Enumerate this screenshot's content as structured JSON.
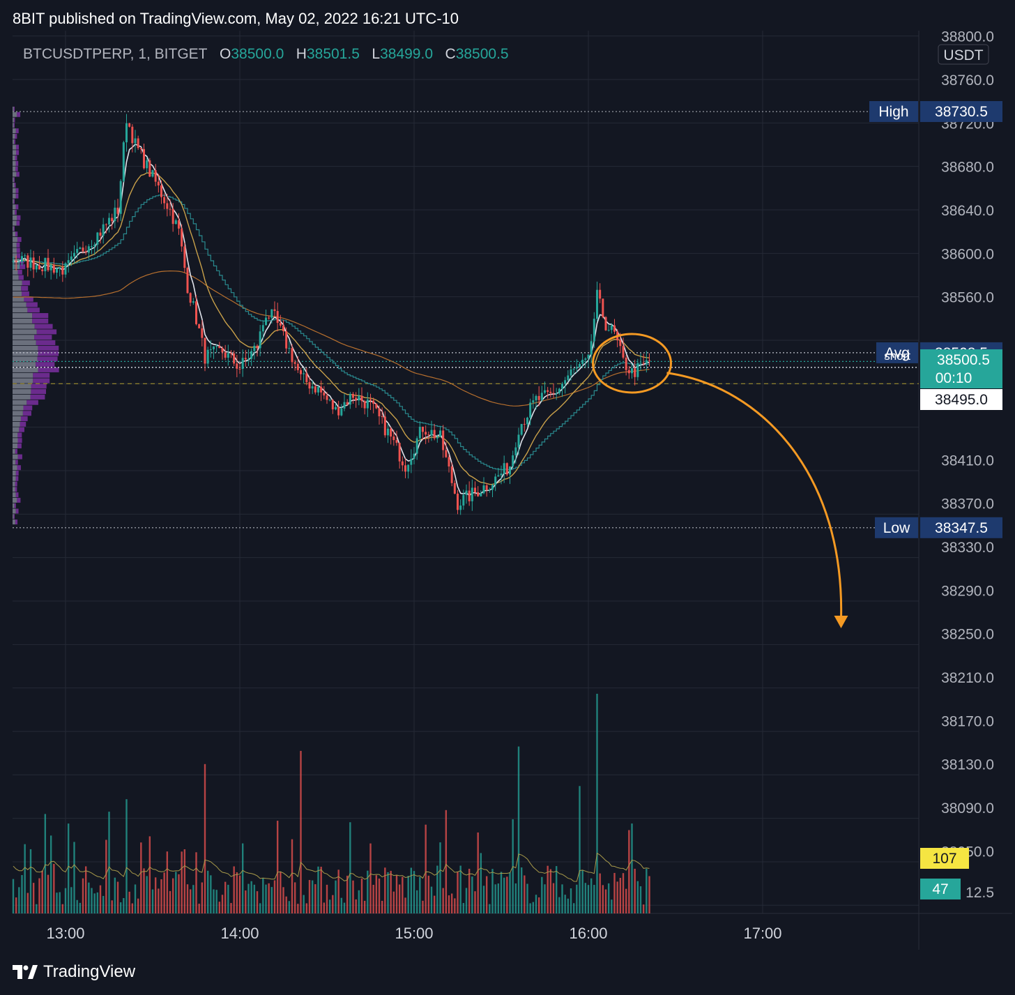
{
  "header": {
    "publisher": "8BIT published on TradingView.com, May 02, 2022 16:21 UTC-10",
    "symbol": "BTCUSDTPERP, 1, BITGET",
    "ohlc": [
      {
        "key": "O",
        "value": "38500.0"
      },
      {
        "key": "H",
        "value": "38501.5"
      },
      {
        "key": "L",
        "value": "38499.0"
      },
      {
        "key": "C",
        "value": "38500.5"
      }
    ]
  },
  "brand": {
    "name": "TradingView",
    "icon": "tradingview-logo-icon"
  },
  "colors": {
    "background": "#131722",
    "grid": "#252a36",
    "up": "#26a69a",
    "down": "#ef5350",
    "ema_fast": "#e0e3eb",
    "ema_mid": "#c9a14a",
    "vwap": "#2a8a8f",
    "ma_long": "#b8702e",
    "annotation": "#f59a23",
    "label_navy": "#1e3a6e",
    "profile_purple": "#7b2fa0",
    "profile_gray": "#8a8f9c"
  },
  "chart_data": {
    "type": "candlestick",
    "currency": "USDT",
    "y_ticks": [
      "38800.0",
      "38760.0",
      "38720.0",
      "38680.0",
      "38640.0",
      "38600.0",
      "38560.0",
      "38410.0",
      "38370.0",
      "38330.0",
      "38290.0",
      "38250.0",
      "38210.0",
      "38170.0",
      "38130.0",
      "38090.0",
      "38050.0",
      "12.5"
    ],
    "x_ticks": [
      "13:00",
      "14:00",
      "15:00",
      "16:00",
      "17:00"
    ],
    "price_labels": {
      "high": {
        "name": "High",
        "value": "38730.5"
      },
      "avg": {
        "name": "Avg",
        "value": "38508.5"
      },
      "last": {
        "value": "38500.5",
        "countdown": "00:10",
        "note": "short"
      },
      "crosshair": {
        "value": "38495.0"
      },
      "low": {
        "name": "Low",
        "value": "38347.5"
      }
    },
    "volume_labels": {
      "volume_ma": "107",
      "volume": "47"
    },
    "price_path": [
      [
        12.7,
        38595
      ],
      [
        12.85,
        38590
      ],
      [
        13.0,
        38585
      ],
      [
        13.1,
        38605
      ],
      [
        13.2,
        38620
      ],
      [
        13.3,
        38640
      ],
      [
        13.35,
        38725
      ],
      [
        13.4,
        38700
      ],
      [
        13.5,
        38670
      ],
      [
        13.6,
        38640
      ],
      [
        13.65,
        38620
      ],
      [
        13.7,
        38570
      ],
      [
        13.75,
        38540
      ],
      [
        13.8,
        38505
      ],
      [
        13.9,
        38510
      ],
      [
        14.0,
        38495
      ],
      [
        14.1,
        38515
      ],
      [
        14.15,
        38545
      ],
      [
        14.2,
        38540
      ],
      [
        14.3,
        38505
      ],
      [
        14.35,
        38485
      ],
      [
        14.45,
        38475
      ],
      [
        14.55,
        38455
      ],
      [
        14.65,
        38470
      ],
      [
        14.75,
        38460
      ],
      [
        14.85,
        38435
      ],
      [
        14.95,
        38405
      ],
      [
        15.05,
        38440
      ],
      [
        15.15,
        38430
      ],
      [
        15.25,
        38370
      ],
      [
        15.3,
        38375
      ],
      [
        15.4,
        38385
      ],
      [
        15.45,
        38390
      ],
      [
        15.55,
        38405
      ],
      [
        15.6,
        38440
      ],
      [
        15.7,
        38465
      ],
      [
        15.8,
        38470
      ],
      [
        15.9,
        38490
      ],
      [
        16.0,
        38500
      ],
      [
        16.05,
        38560
      ],
      [
        16.1,
        38535
      ],
      [
        16.15,
        38525
      ],
      [
        16.2,
        38500
      ],
      [
        16.25,
        38490
      ],
      [
        16.3,
        38495
      ],
      [
        16.35,
        38500.5
      ]
    ],
    "volume_spikes": [
      {
        "x": 16.05,
        "value": 100
      },
      {
        "x": 15.6,
        "value": 76
      },
      {
        "x": 14.35,
        "value": 74
      },
      {
        "x": 13.8,
        "value": 68
      },
      {
        "x": 15.95,
        "value": 58
      },
      {
        "x": 13.35,
        "value": 52
      }
    ],
    "annotations": [
      {
        "type": "ellipse",
        "x": 16.25,
        "y": 38495
      },
      {
        "type": "arrow",
        "from": [
          16.45,
          38490
        ],
        "to": [
          17.45,
          38255
        ]
      }
    ]
  }
}
